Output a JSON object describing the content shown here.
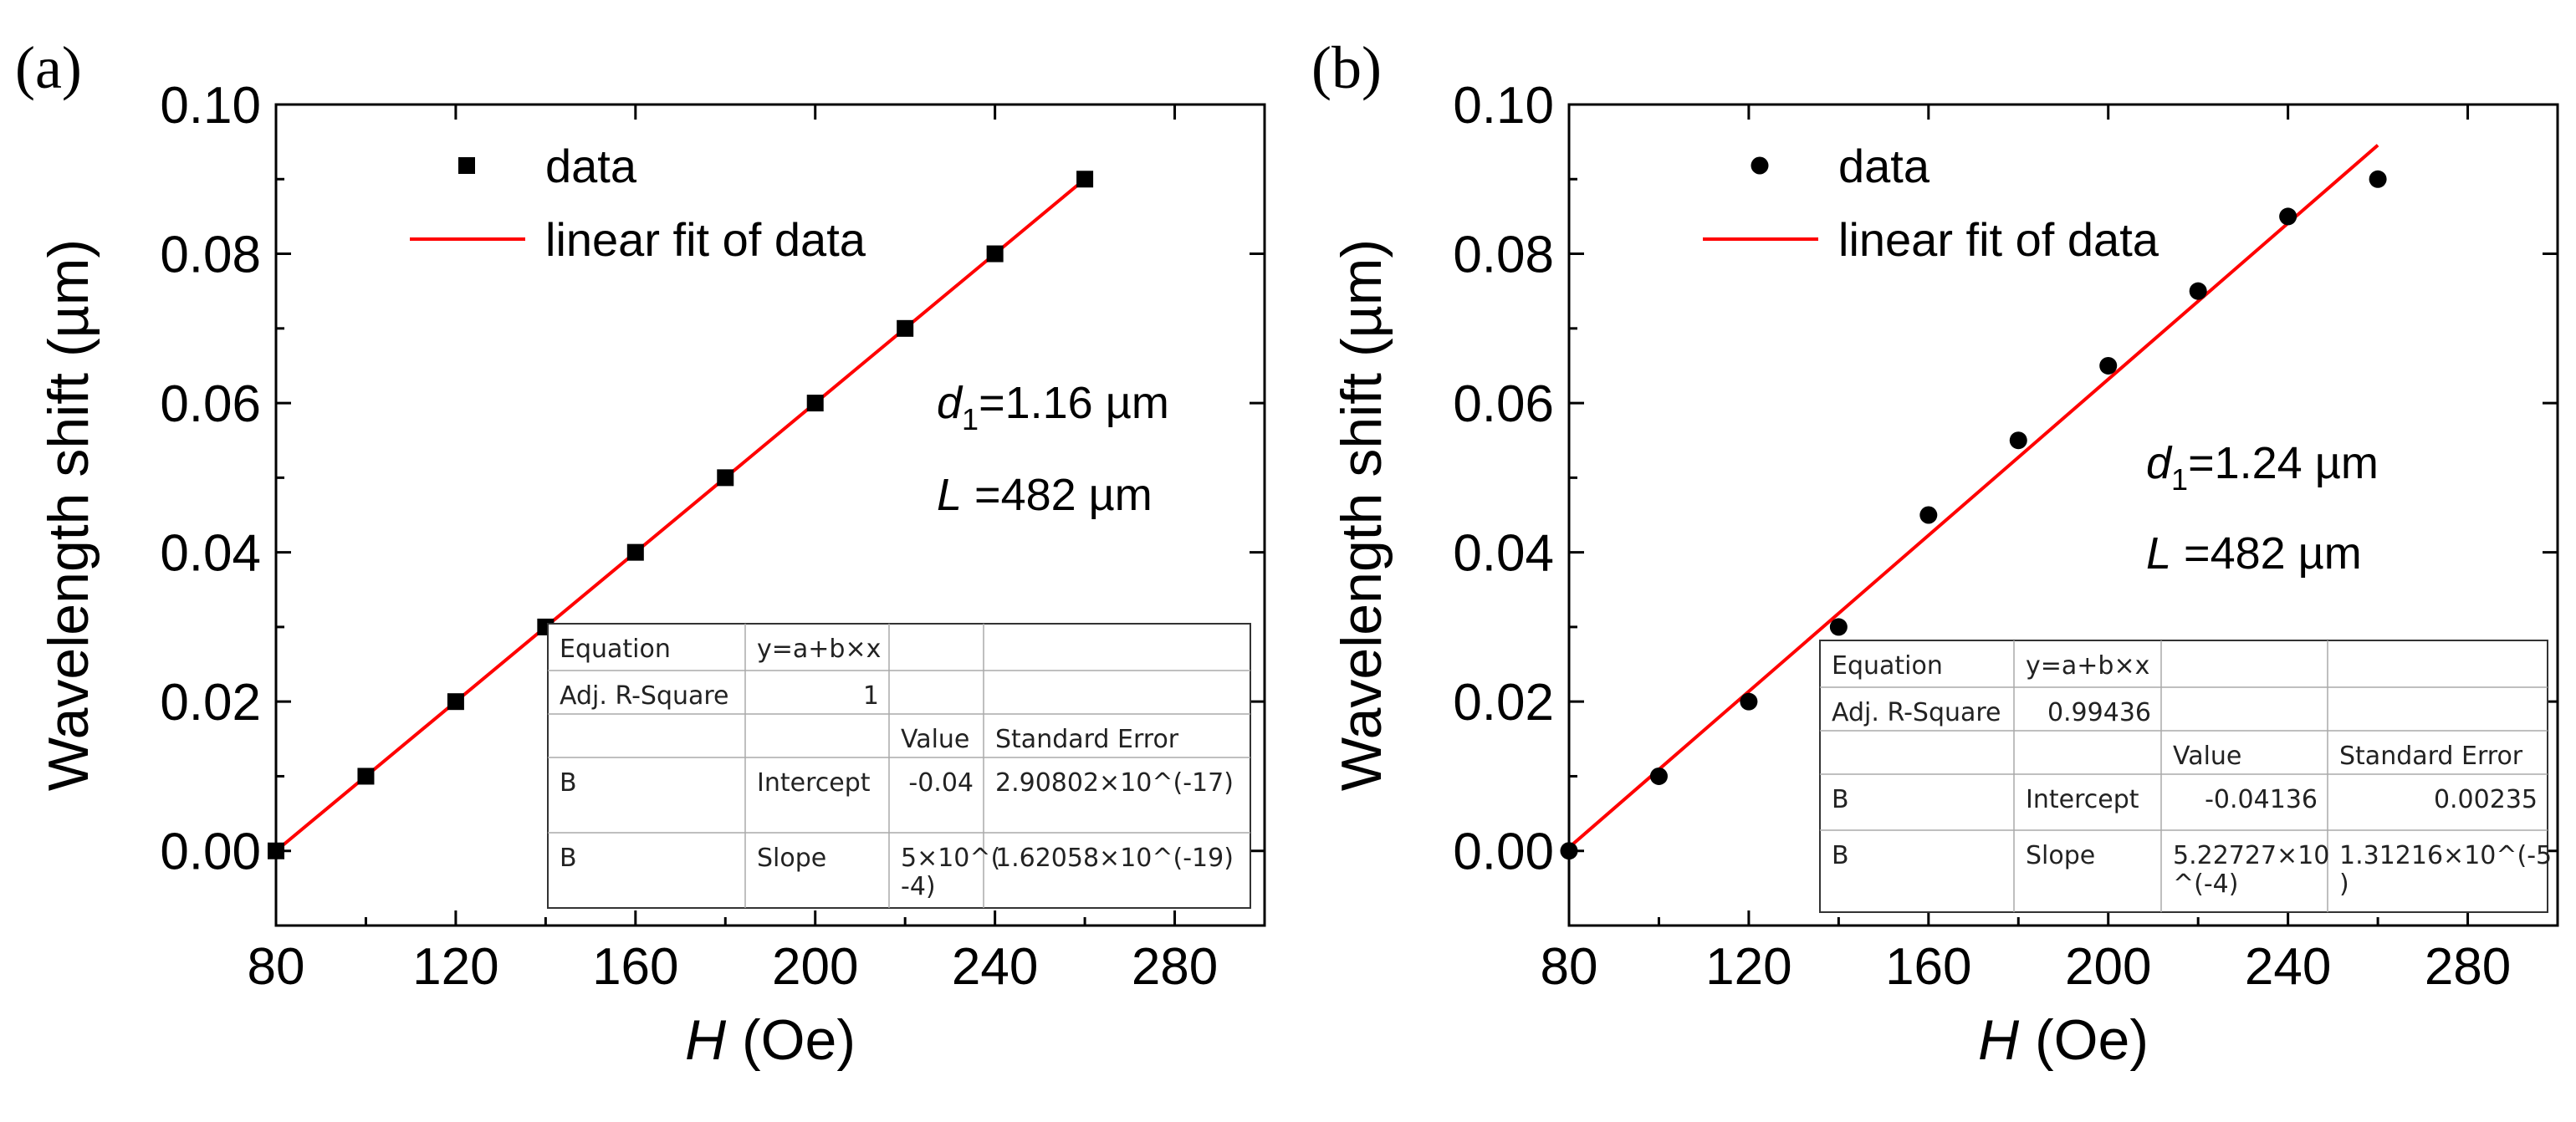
{
  "chart_data": [
    {
      "panel_label": "(a)",
      "type": "scatter",
      "marker": "square",
      "xlabel_var": "H",
      "xlabel_unit": " (Oe)",
      "ylabel": "Wavelength shift (µm)",
      "xlim": [
        80,
        300
      ],
      "ylim": [
        -0.01,
        0.1
      ],
      "xticks": [
        "80",
        "120",
        "160",
        "200",
        "240",
        "280"
      ],
      "yticks": [
        "0.00",
        "0.02",
        "0.04",
        "0.06",
        "0.08",
        "0.10"
      ],
      "x": [
        80,
        100,
        120,
        140,
        160,
        180,
        200,
        220,
        240,
        260
      ],
      "y": [
        0.0,
        0.01,
        0.02,
        0.03,
        0.04,
        0.05,
        0.06,
        0.07,
        0.08,
        0.09
      ],
      "fit": {
        "intercept": -0.04,
        "slope": 0.0005,
        "x_range": [
          80,
          260
        ]
      },
      "legend": {
        "data": "data",
        "fit": "linear fit of data",
        "position": "top-left"
      },
      "annotation": {
        "d_sym": "d",
        "d_sub": "1",
        "d_val": "=1.16 µm",
        "L_sym": "L",
        "L_val": " =482 µm"
      },
      "table": [
        [
          "Equation",
          "y=a+b×x",
          "",
          ""
        ],
        [
          "Adj. R-Square",
          "1",
          "",
          ""
        ],
        [
          "",
          "",
          "Value",
          "Standard Error"
        ],
        [
          "B",
          "Intercept",
          "-0.04",
          "2.90802×10^(-17)"
        ],
        [
          "B",
          "Slope",
          "5×10^(\n-4)",
          "1.62058×10^(-19)"
        ]
      ],
      "colors": {
        "marker": "#000000",
        "fit": "#ff0000"
      }
    },
    {
      "panel_label": "(b)",
      "type": "scatter",
      "marker": "circle",
      "xlabel_var": "H",
      "xlabel_unit": " (Oe)",
      "ylabel": "Wavelength shift (µm)",
      "xlim": [
        80,
        300
      ],
      "ylim": [
        -0.01,
        0.1
      ],
      "xticks": [
        "80",
        "120",
        "160",
        "200",
        "240",
        "280"
      ],
      "yticks": [
        "0.00",
        "0.02",
        "0.04",
        "0.06",
        "0.08",
        "0.10"
      ],
      "x": [
        80,
        100,
        120,
        140,
        160,
        180,
        200,
        220,
        240,
        260
      ],
      "y": [
        0.0,
        0.01,
        0.02,
        0.03,
        0.045,
        0.055,
        0.065,
        0.075,
        0.085,
        0.09
      ],
      "fit": {
        "intercept": -0.04136,
        "slope": 0.000522727,
        "x_range": [
          80,
          260
        ]
      },
      "legend": {
        "data": "data",
        "fit": "linear fit of data",
        "position": "top-left"
      },
      "annotation": {
        "d_sym": "d",
        "d_sub": "1",
        "d_val": "=1.24 µm",
        "L_sym": "L",
        "L_val": " =482 µm"
      },
      "table": [
        [
          "Equation",
          "y=a+b×x",
          "",
          ""
        ],
        [
          "Adj. R-Square",
          "0.99436",
          "",
          ""
        ],
        [
          "",
          "",
          "Value",
          "Standard Error"
        ],
        [
          "B",
          "Intercept",
          "-0.04136",
          "0.00235"
        ],
        [
          "B",
          "Slope",
          "5.22727×10\n^(-4)",
          "1.31216×10^(-5\n)"
        ]
      ],
      "colors": {
        "marker": "#000000",
        "fit": "#ff0000"
      }
    }
  ]
}
